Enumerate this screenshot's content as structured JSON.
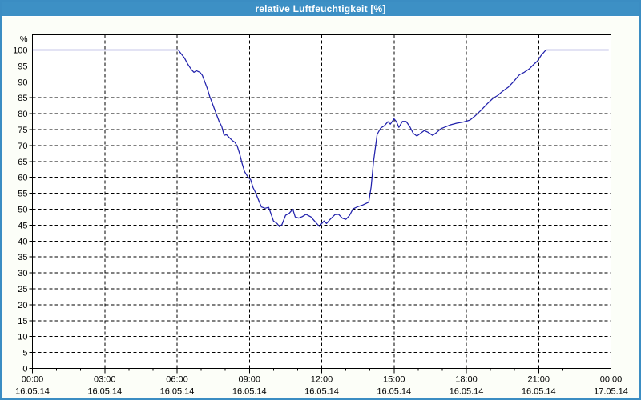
{
  "window": {
    "title": "relative Luftfeuchtigkeit [%]"
  },
  "colors": {
    "titlebar_bg": "#3D90C5",
    "window_border": "#3B8DC3",
    "window_bg": "#FCFEF8",
    "plot_bg": "#FFFFFF",
    "grid": "#000000",
    "frame": "#000000",
    "line": "#2121AC",
    "title_text": "#FFFFFF",
    "label_text": "#000000"
  },
  "chart_data": {
    "type": "line",
    "title": "relative Luftfeuchtigkeit [%]",
    "ylabel": "%",
    "xlabel": "",
    "ylim": [
      0,
      100
    ],
    "y_tick_step": 5,
    "y_tick_labels": [
      "0",
      "5",
      "10",
      "15",
      "20",
      "25",
      "30",
      "35",
      "40",
      "45",
      "50",
      "55",
      "60",
      "65",
      "70",
      "75",
      "80",
      "85",
      "90",
      "95",
      "100"
    ],
    "grid": "dashed",
    "legend": "none",
    "x_range_hours": [
      0,
      24
    ],
    "x_minor_tick_hours": 1,
    "x_major_ticks": [
      {
        "hour": 0,
        "time": "00:00",
        "date": "16.05.14"
      },
      {
        "hour": 3,
        "time": "03:00",
        "date": "16.05.14"
      },
      {
        "hour": 6,
        "time": "06:00",
        "date": "16.05.14"
      },
      {
        "hour": 9,
        "time": "09:00",
        "date": "16.05.14"
      },
      {
        "hour": 12,
        "time": "12:00",
        "date": "16.05.14"
      },
      {
        "hour": 15,
        "time": "15:00",
        "date": "16.05.14"
      },
      {
        "hour": 18,
        "time": "18:00",
        "date": "16.05.14"
      },
      {
        "hour": 21,
        "time": "21:00",
        "date": "16.05.14"
      },
      {
        "hour": 24,
        "time": "00:00",
        "date": "17.05.14"
      }
    ],
    "series": [
      {
        "name": "relative Luftfeuchtigkeit",
        "unit": "%",
        "color": "#2121AC",
        "points": [
          [
            0,
            100
          ],
          [
            1,
            100
          ],
          [
            2,
            100
          ],
          [
            3,
            100
          ],
          [
            4,
            100
          ],
          [
            5,
            100
          ],
          [
            5.5,
            100
          ],
          [
            6.05,
            100
          ],
          [
            6.15,
            99
          ],
          [
            6.3,
            97.6
          ],
          [
            6.45,
            95.5
          ],
          [
            6.6,
            93.8
          ],
          [
            6.7,
            93
          ],
          [
            6.8,
            93.5
          ],
          [
            6.95,
            93
          ],
          [
            7.05,
            92
          ],
          [
            7.15,
            90
          ],
          [
            7.25,
            88
          ],
          [
            7.35,
            85.5
          ],
          [
            7.5,
            82.5
          ],
          [
            7.6,
            80.5
          ],
          [
            7.75,
            77.5
          ],
          [
            7.85,
            76
          ],
          [
            7.95,
            73.2
          ],
          [
            8.05,
            73.4
          ],
          [
            8.15,
            72.6
          ],
          [
            8.3,
            71.5
          ],
          [
            8.4,
            71
          ],
          [
            8.5,
            69.7
          ],
          [
            8.6,
            67.3
          ],
          [
            8.7,
            64.3
          ],
          [
            8.8,
            61.8
          ],
          [
            8.95,
            60
          ],
          [
            9.05,
            59.3
          ],
          [
            9.15,
            56.8
          ],
          [
            9.25,
            55.3
          ],
          [
            9.4,
            52.5
          ],
          [
            9.5,
            50.7
          ],
          [
            9.65,
            50.3
          ],
          [
            9.8,
            50.6
          ],
          [
            9.9,
            48.5
          ],
          [
            10,
            46.3
          ],
          [
            10.15,
            45.5
          ],
          [
            10.25,
            44.5
          ],
          [
            10.35,
            45.2
          ],
          [
            10.5,
            48.1
          ],
          [
            10.65,
            48.7
          ],
          [
            10.8,
            50
          ],
          [
            10.9,
            47.6
          ],
          [
            11.05,
            47.2
          ],
          [
            11.2,
            47.7
          ],
          [
            11.35,
            48.4
          ],
          [
            11.55,
            47.6
          ],
          [
            11.7,
            46.3
          ],
          [
            11.9,
            44.6
          ],
          [
            12,
            45.5
          ],
          [
            12.1,
            46.3
          ],
          [
            12.2,
            45.5
          ],
          [
            12.35,
            46.8
          ],
          [
            12.55,
            48.3
          ],
          [
            12.7,
            48.4
          ],
          [
            12.85,
            47.2
          ],
          [
            13,
            46.8
          ],
          [
            13.15,
            48
          ],
          [
            13.3,
            50.1
          ],
          [
            13.5,
            50.8
          ],
          [
            13.7,
            51.3
          ],
          [
            13.95,
            52.2
          ],
          [
            14.05,
            57
          ],
          [
            14.15,
            65
          ],
          [
            14.3,
            73.5
          ],
          [
            14.45,
            75.5
          ],
          [
            14.6,
            76.2
          ],
          [
            14.75,
            77.5
          ],
          [
            14.85,
            76.7
          ],
          [
            15,
            78.4
          ],
          [
            15.1,
            77.5
          ],
          [
            15.2,
            75.7
          ],
          [
            15.35,
            77.6
          ],
          [
            15.5,
            77.6
          ],
          [
            15.65,
            76
          ],
          [
            15.8,
            73.8
          ],
          [
            15.95,
            73
          ],
          [
            16.1,
            73.8
          ],
          [
            16.25,
            74.7
          ],
          [
            16.4,
            74.2
          ],
          [
            16.6,
            73.2
          ],
          [
            16.75,
            74
          ],
          [
            16.95,
            75.3
          ],
          [
            17.15,
            75.9
          ],
          [
            17.35,
            76.5
          ],
          [
            17.6,
            77
          ],
          [
            17.9,
            77.4
          ],
          [
            18.15,
            78
          ],
          [
            18.35,
            79.2
          ],
          [
            18.6,
            81
          ],
          [
            18.85,
            83
          ],
          [
            19.1,
            84.8
          ],
          [
            19.3,
            85.7
          ],
          [
            19.5,
            87
          ],
          [
            19.75,
            88.4
          ],
          [
            19.95,
            90
          ],
          [
            20.2,
            92.2
          ],
          [
            20.4,
            93
          ],
          [
            20.6,
            94
          ],
          [
            20.8,
            95.5
          ],
          [
            20.95,
            96.5
          ],
          [
            21.1,
            98.3
          ],
          [
            21.3,
            100
          ],
          [
            22,
            100
          ],
          [
            23,
            100
          ],
          [
            23.9,
            100
          ]
        ]
      }
    ]
  }
}
